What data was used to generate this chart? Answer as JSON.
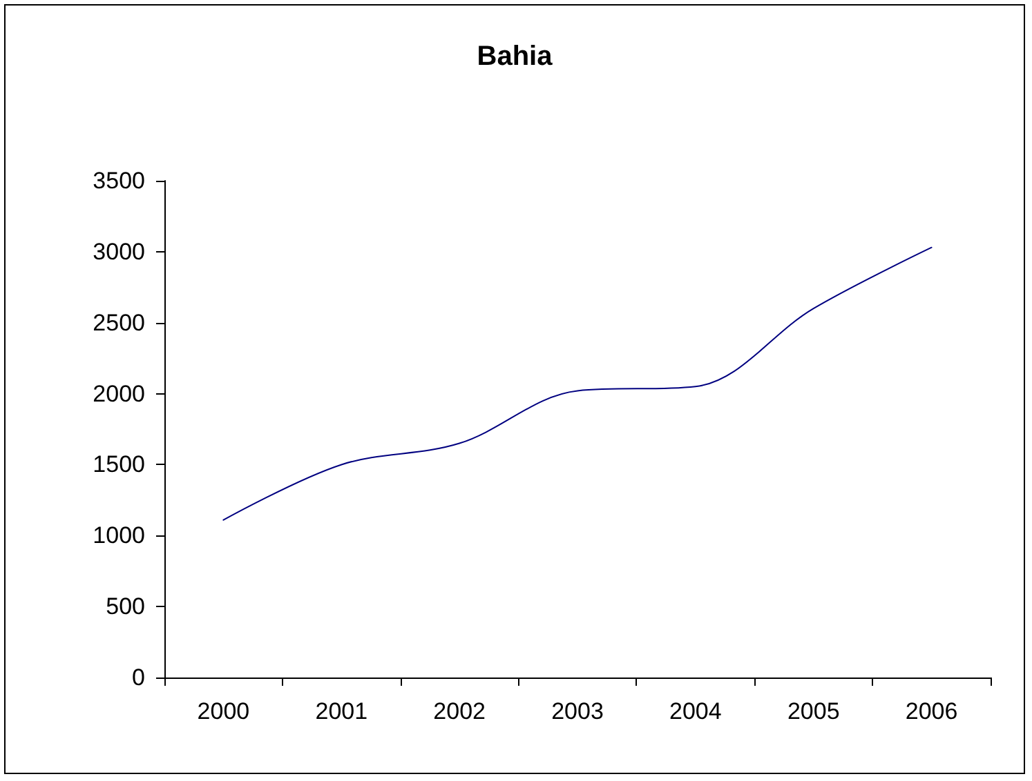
{
  "chart_data": {
    "type": "line",
    "title": "Bahia",
    "categories": [
      "2000",
      "2001",
      "2002",
      "2003",
      "2004",
      "2005",
      "2006"
    ],
    "series": [
      {
        "color": "#000080",
        "values": [
          1110,
          1500,
          1650,
          2020,
          2050,
          2600,
          3030
        ]
      }
    ],
    "ylim": [
      0,
      3500
    ],
    "yticks": [
      0,
      500,
      1000,
      1500,
      2000,
      2500,
      3000,
      3500
    ],
    "grid": false,
    "legend": false,
    "marker": "none",
    "line_style": "solid"
  }
}
